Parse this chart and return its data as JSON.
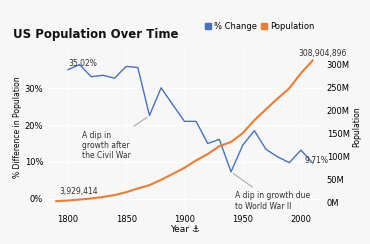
{
  "title": "US Population Over Time",
  "xlabel": "Year ⚓",
  "ylabel_left": "% Difference in Population",
  "ylabel_right": "Population",
  "background_color": "#f7f7f7",
  "line_color_pct": "#4472c4",
  "line_color_pop": "#ed7d31",
  "years": [
    1790,
    1800,
    1810,
    1820,
    1830,
    1840,
    1850,
    1860,
    1870,
    1880,
    1890,
    1900,
    1910,
    1920,
    1930,
    1940,
    1950,
    1960,
    1970,
    1980,
    1990,
    2000,
    2010
  ],
  "pct_change": [
    null,
    35.02,
    36.4,
    33.1,
    33.5,
    32.7,
    35.9,
    35.6,
    22.6,
    30.1,
    25.5,
    21.0,
    21.0,
    15.0,
    16.1,
    7.3,
    14.5,
    18.5,
    13.4,
    11.4,
    9.8,
    13.2,
    9.71
  ],
  "population": [
    3929414,
    5308483,
    7239881,
    9638453,
    12866020,
    17069453,
    23191876,
    31443321,
    38558371,
    50189209,
    62979766,
    76212168,
    92228496,
    106021537,
    123202624,
    132164569,
    151325798,
    179323175,
    203211926,
    226545805,
    248709873,
    281421906,
    308904896
  ],
  "yticks_left": [
    0,
    10,
    20,
    30
  ],
  "yticks_left_labels": [
    "0%",
    "10%",
    "20%",
    "30%"
  ],
  "yticks_right": [
    0,
    50000000,
    100000000,
    150000000,
    200000000,
    250000000,
    300000000
  ],
  "yticks_right_labels": [
    "0M",
    "50M",
    "100M",
    "150M",
    "200M",
    "250M",
    "300M"
  ],
  "xticks": [
    1800,
    1850,
    1900,
    1950,
    2000
  ],
  "xlim": [
    1783,
    2018
  ],
  "ylim_left": [
    -3,
    42
  ],
  "ylim_right": [
    -15000000,
    345000000
  ]
}
